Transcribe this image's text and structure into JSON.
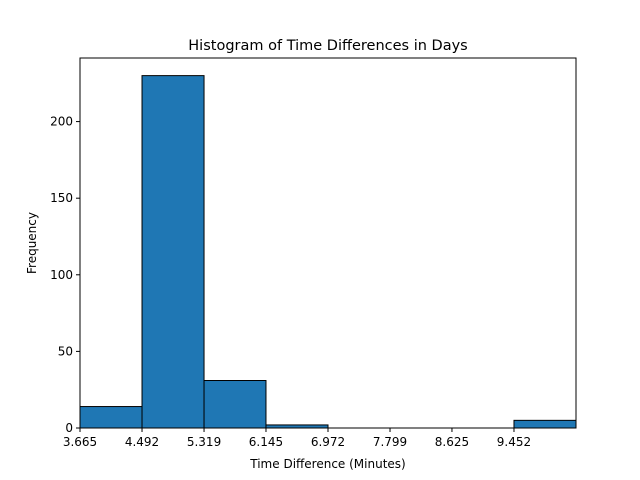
{
  "chart_data": {
    "type": "bar",
    "title": "Histogram of Time Differences in Days",
    "xlabel": "Time Difference (Minutes)",
    "ylabel": "Frequency",
    "bin_edges": [
      3.665,
      4.492,
      5.319,
      6.145,
      6.972,
      7.799,
      8.625,
      9.452,
      10.279
    ],
    "values": [
      14,
      230,
      31,
      2,
      0,
      0,
      0,
      5
    ],
    "x_tick_values": [
      3.665,
      4.492,
      5.319,
      6.145,
      6.972,
      7.799,
      8.625,
      9.452
    ],
    "x_tick_labels": [
      "3.665",
      "4.492",
      "5.319",
      "6.145",
      "6.972",
      "7.799",
      "8.625",
      "9.452"
    ],
    "y_tick_values": [
      0,
      50,
      100,
      150,
      200
    ],
    "y_tick_labels": [
      "0",
      "50",
      "100",
      "150",
      "200"
    ],
    "xlim": [
      3.665,
      10.279
    ],
    "ylim": [
      0,
      241.5
    ],
    "grid": false,
    "colors": {
      "bar_fill": "#1f77b4",
      "bar_edge": "#000000"
    }
  }
}
